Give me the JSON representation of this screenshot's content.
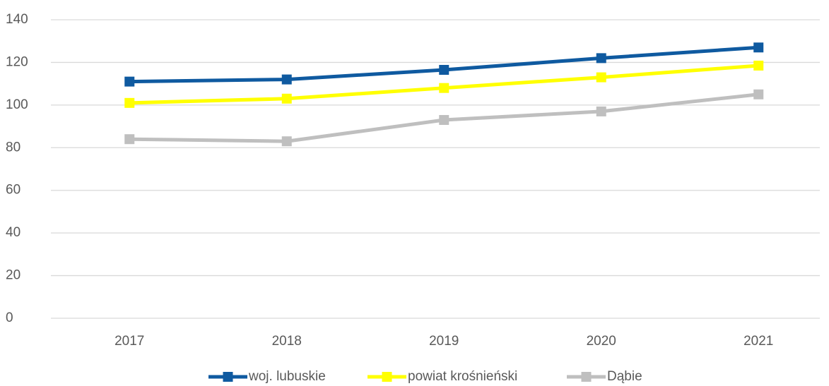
{
  "chart_data": {
    "type": "line",
    "categories": [
      "2017",
      "2018",
      "2019",
      "2020",
      "2021"
    ],
    "series": [
      {
        "name": "woj. lubuskie",
        "color": "#0f5aa0",
        "values": [
          111,
          112,
          116.5,
          122,
          127
        ]
      },
      {
        "name": "powiat krośnieński",
        "color": "#ffff00",
        "values": [
          101,
          103,
          108,
          113,
          118.5
        ]
      },
      {
        "name": "Dąbie",
        "color": "#bfbfbf",
        "values": [
          84,
          83,
          93,
          97,
          105
        ]
      }
    ],
    "ylim": [
      0,
      140
    ],
    "yticks": [
      0,
      20,
      40,
      60,
      80,
      100,
      120,
      140
    ],
    "grid": true,
    "legend": "bottom"
  }
}
